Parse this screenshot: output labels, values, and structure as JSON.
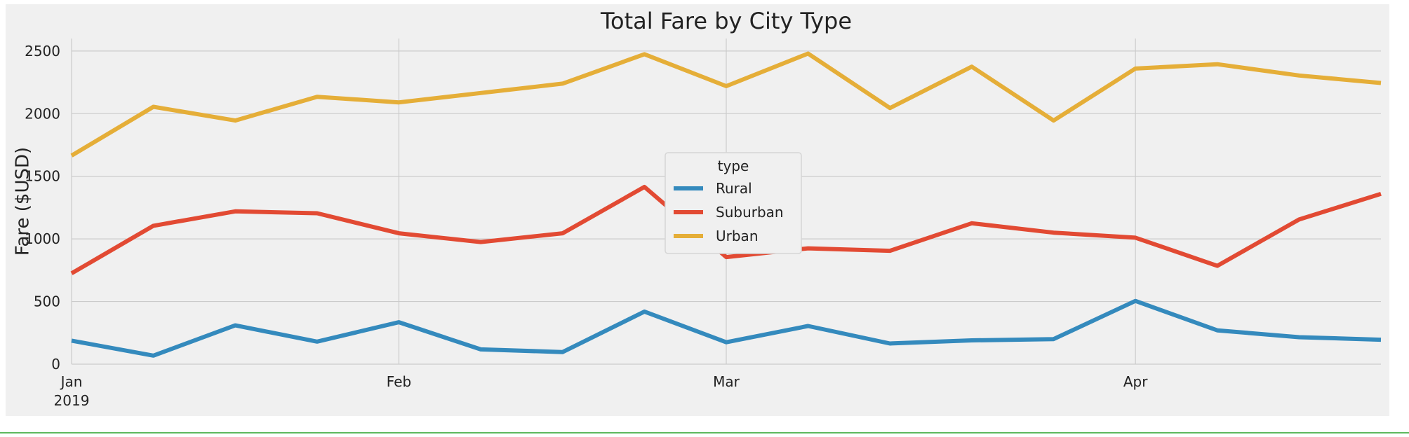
{
  "chart_data": {
    "type": "line",
    "title": "Total Fare by City Type",
    "xlabel": "",
    "ylabel": "Fare ($USD)",
    "x": [
      "2019-01-06",
      "2019-01-13",
      "2019-01-20",
      "2019-01-27",
      "2019-02-03",
      "2019-02-10",
      "2019-02-17",
      "2019-02-24",
      "2019-03-03",
      "2019-03-10",
      "2019-03-17",
      "2019-03-24",
      "2019-03-31",
      "2019-04-07",
      "2019-04-14",
      "2019-04-21",
      "2019-04-28"
    ],
    "x_ticks": [
      {
        "date": "2019-01-06",
        "label": "Jan",
        "sublabel": "2019"
      },
      {
        "date": "2019-02-03",
        "label": "Feb",
        "sublabel": ""
      },
      {
        "date": "2019-03-03",
        "label": "Mar",
        "sublabel": ""
      },
      {
        "date": "2019-04-07",
        "label": "Apr",
        "sublabel": ""
      }
    ],
    "ylim": [
      0,
      2600
    ],
    "y_ticks": [
      0,
      500,
      1000,
      1500,
      2000,
      2500
    ],
    "grid": true,
    "legend": {
      "title": "type",
      "placement": "center"
    },
    "series": [
      {
        "name": "Rural",
        "color": "#348ABD",
        "values": [
          188,
          68,
          310,
          180,
          335,
          118,
          97,
          420,
          175,
          305,
          165,
          190,
          200,
          505,
          270,
          215,
          195
        ]
      },
      {
        "name": "Suburban",
        "color": "#E24A33",
        "values": [
          725,
          1105,
          1220,
          1205,
          1045,
          975,
          1045,
          1415,
          855,
          925,
          905,
          1125,
          1050,
          1010,
          785,
          1155,
          1360
        ]
      },
      {
        "name": "Urban",
        "color": "#E5AE38",
        "values": [
          1665,
          2055,
          1945,
          2135,
          2090,
          2165,
          2240,
          2475,
          2220,
          2480,
          2045,
          2375,
          1945,
          2360,
          2395,
          2305,
          2245
        ]
      }
    ]
  }
}
